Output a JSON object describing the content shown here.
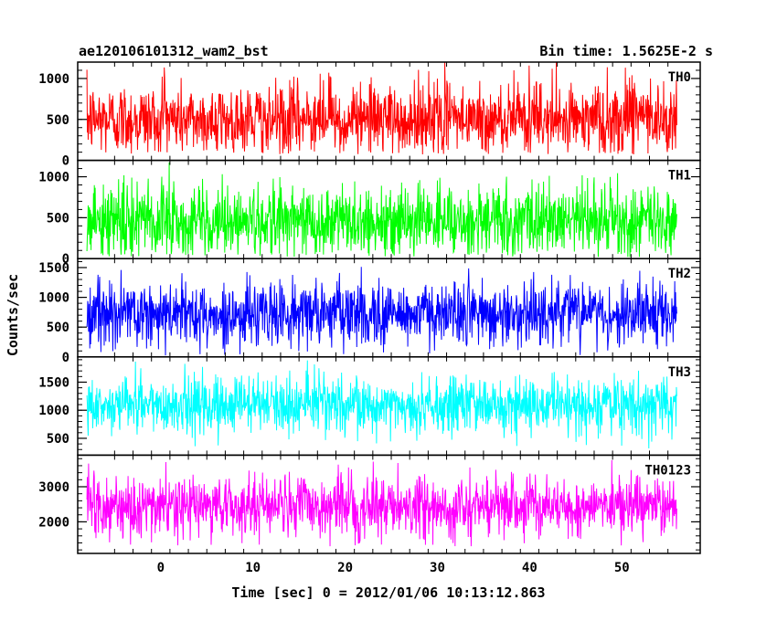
{
  "chart_data": {
    "type": "line",
    "title_left": "ae120106101312_wam2_bst",
    "title_right": "Bin time: 1.5625E-2 s",
    "xlabel": "Time [sec] 0 = 2012/01/06 10:13:12.863",
    "ylabel": "Counts/sec",
    "xlim": [
      -9,
      58.5
    ],
    "xticks": [
      0,
      10,
      20,
      30,
      40,
      50
    ],
    "x_range_of_data": [
      -8,
      56
    ],
    "bin_time_s": 0.015625,
    "panels": [
      {
        "name": "TH0",
        "color": "#ff0000",
        "ylim": [
          0,
          1200
        ],
        "yticks": [
          0,
          500,
          1000
        ],
        "mean": 500,
        "noise_low": 70,
        "noise_high": 1200
      },
      {
        "name": "TH1",
        "color": "#00ff00",
        "ylim": [
          0,
          1200
        ],
        "yticks": [
          0,
          500,
          1000
        ],
        "mean": 470,
        "noise_low": 20,
        "noise_high": 1200
      },
      {
        "name": "TH2",
        "color": "#0000ff",
        "ylim": [
          0,
          1650
        ],
        "yticks": [
          0,
          500,
          1000,
          1500
        ],
        "mean": 720,
        "noise_low": 20,
        "noise_high": 1600
      },
      {
        "name": "TH3",
        "color": "#00ffff",
        "ylim": [
          200,
          1950
        ],
        "yticks": [
          500,
          1000,
          1500
        ],
        "mean": 1090,
        "noise_low": 300,
        "noise_high": 1900
      },
      {
        "name": "TH0123",
        "color": "#ff00ff",
        "ylim": [
          1100,
          3900
        ],
        "yticks": [
          2000,
          3000
        ],
        "mean": 2450,
        "noise_low": 1300,
        "noise_high": 3800
      }
    ]
  }
}
